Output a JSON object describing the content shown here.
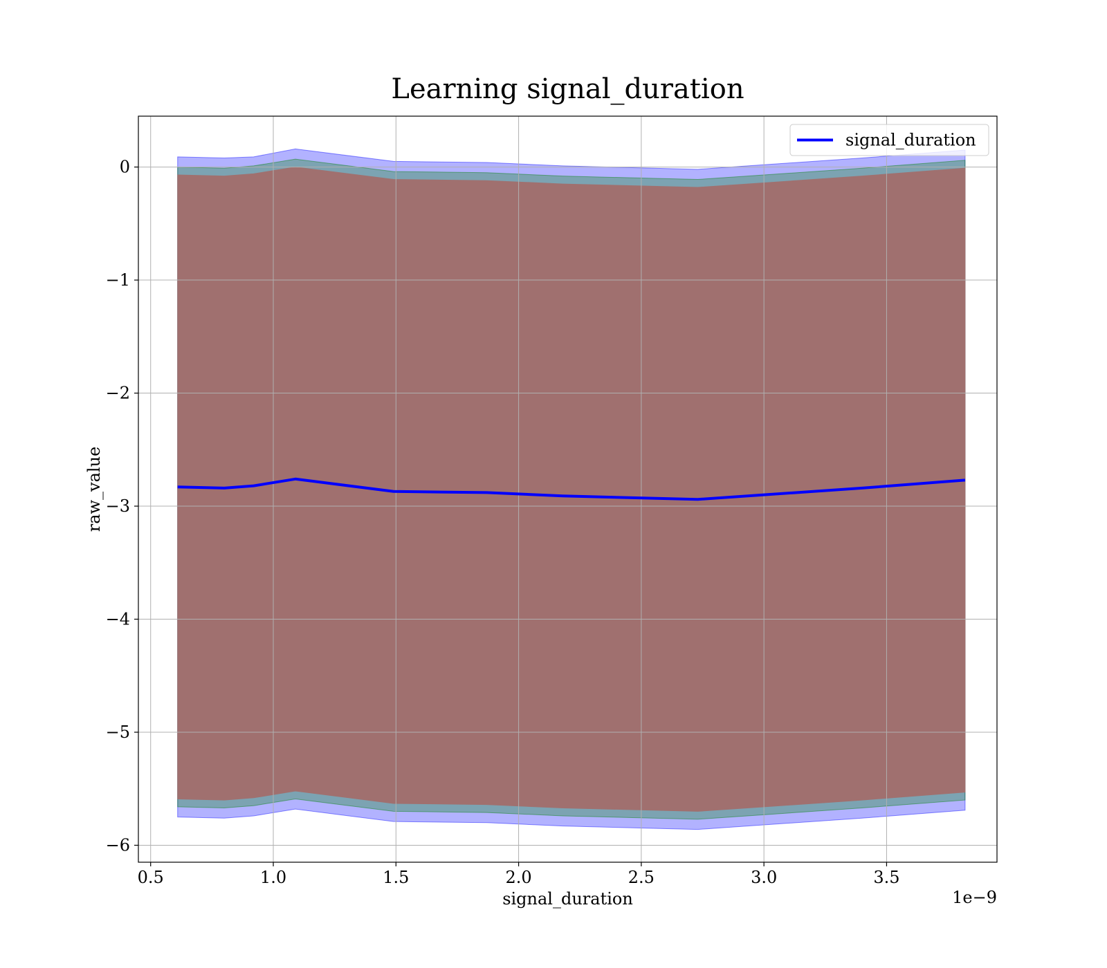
{
  "chart_data": {
    "type": "line",
    "title": "Learning signal_duration",
    "xlabel": "signal_duration",
    "ylabel": "raw_value",
    "x_offset_label": "1e−9",
    "xlim": [
      0.45,
      3.95
    ],
    "ylim": [
      -6.15,
      0.45
    ],
    "x_ticks": [
      0.5,
      1.0,
      1.5,
      2.0,
      2.5,
      3.0,
      3.5
    ],
    "x_tick_labels": [
      "0.5",
      "1.0",
      "1.5",
      "2.0",
      "2.5",
      "3.0",
      "3.5"
    ],
    "y_ticks": [
      0,
      -1,
      -2,
      -3,
      -4,
      -5,
      -6
    ],
    "y_tick_labels": [
      "0",
      "−1",
      "−2",
      "−3",
      "−4",
      "−5",
      "−6"
    ],
    "grid": true,
    "legend_position": "top-right",
    "x": [
      0.61,
      0.8,
      0.92,
      1.09,
      1.49,
      1.87,
      2.18,
      2.73,
      3.0,
      3.4,
      3.82
    ],
    "series": [
      {
        "name": "signal_duration",
        "color": "#0000ff",
        "values": [
          -2.83,
          -2.84,
          -2.82,
          -2.76,
          -2.87,
          -2.88,
          -2.91,
          -2.94,
          -2.9,
          -2.84,
          -2.77
        ]
      }
    ],
    "bands": [
      {
        "color": "#0000ff",
        "opacity": 0.3,
        "upper": [
          0.09,
          0.08,
          0.09,
          0.16,
          0.05,
          0.04,
          0.01,
          -0.02,
          0.02,
          0.08,
          0.15
        ],
        "lower": [
          -5.75,
          -5.76,
          -5.74,
          -5.68,
          -5.79,
          -5.8,
          -5.83,
          -5.86,
          -5.82,
          -5.76,
          -5.69
        ]
      },
      {
        "color": "#008000",
        "opacity": 0.3,
        "upper": [
          0.0,
          -0.01,
          0.01,
          0.07,
          -0.04,
          -0.05,
          -0.08,
          -0.11,
          -0.07,
          -0.01,
          0.06
        ],
        "lower": [
          -5.66,
          -5.67,
          -5.65,
          -5.59,
          -5.7,
          -5.71,
          -5.74,
          -5.77,
          -5.73,
          -5.67,
          -5.6
        ]
      },
      {
        "color": "#a0706f",
        "opacity": 1,
        "upper": [
          -0.07,
          -0.08,
          -0.06,
          0.0,
          -0.11,
          -0.12,
          -0.15,
          -0.18,
          -0.14,
          -0.08,
          -0.01
        ],
        "lower": [
          -5.59,
          -5.6,
          -5.58,
          -5.52,
          -5.63,
          -5.64,
          -5.67,
          -5.7,
          -5.66,
          -5.6,
          -5.53
        ]
      }
    ]
  }
}
